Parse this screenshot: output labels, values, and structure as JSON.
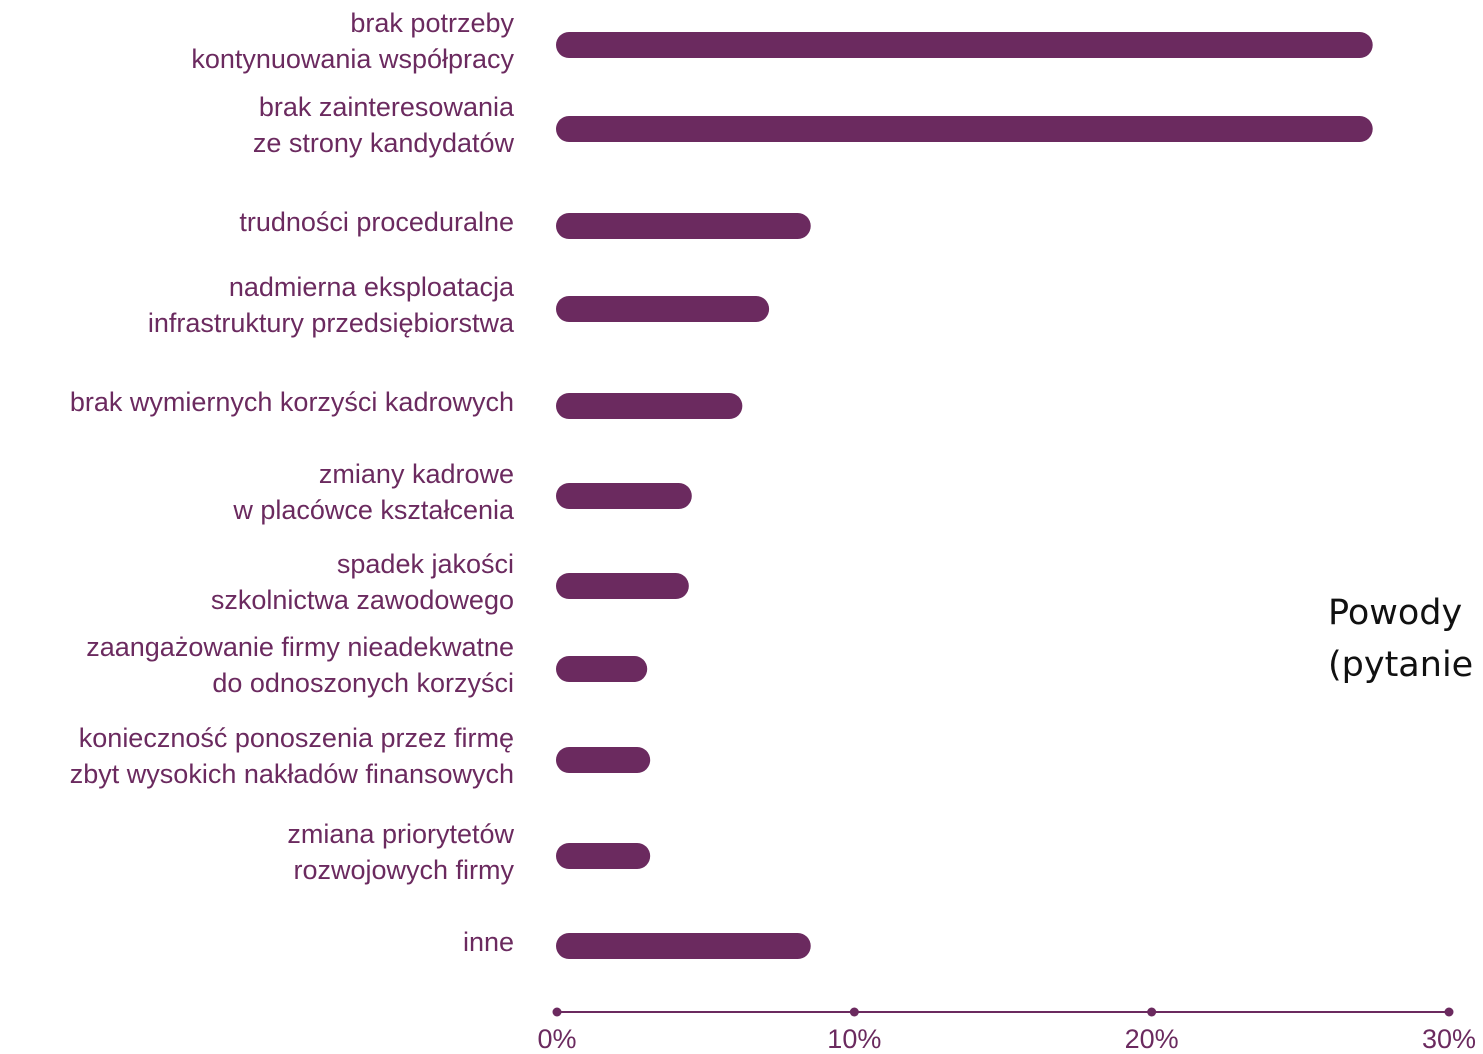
{
  "chart_data": {
    "type": "barh",
    "categories": [
      [
        "brak potrzeby",
        "kontynuowania współpracy"
      ],
      [
        "brak zainteresowania",
        "ze strony kandydatów"
      ],
      [
        "trudności proceduralne"
      ],
      [
        "nadmierna eksploatacja",
        "infrastruktury przedsiębiorstwa"
      ],
      [
        "brak wymiernych korzyści kadrowych"
      ],
      [
        "zmiany kadrowe",
        "w placówce kształcenia"
      ],
      [
        "spadek jakości",
        "szkolnictwa zawodowego"
      ],
      [
        "zaangażowanie firmy nieadekwatne",
        "do odnoszonych korzyści"
      ],
      [
        "konieczność ponoszenia przez firmę",
        "zbyt wysokich nakładów finansowych"
      ],
      [
        "zmiana priorytetów",
        "rozwojowych firmy"
      ],
      [
        "inne"
      ]
    ],
    "values": [
      27.4,
      27.4,
      8.5,
      7.1,
      6.2,
      4.5,
      4.4,
      3.0,
      3.1,
      3.1,
      8.5
    ],
    "color": "#6b2a5f",
    "xlim": [
      0,
      30
    ],
    "xticks": [
      {
        "value": 0,
        "label": "0%"
      },
      {
        "value": 10,
        "label": "10%"
      },
      {
        "value": 20,
        "label": "20%"
      },
      {
        "value": 30,
        "label": "30%"
      }
    ],
    "annotation": [
      "Powody",
      "(pytanie"
    ]
  }
}
